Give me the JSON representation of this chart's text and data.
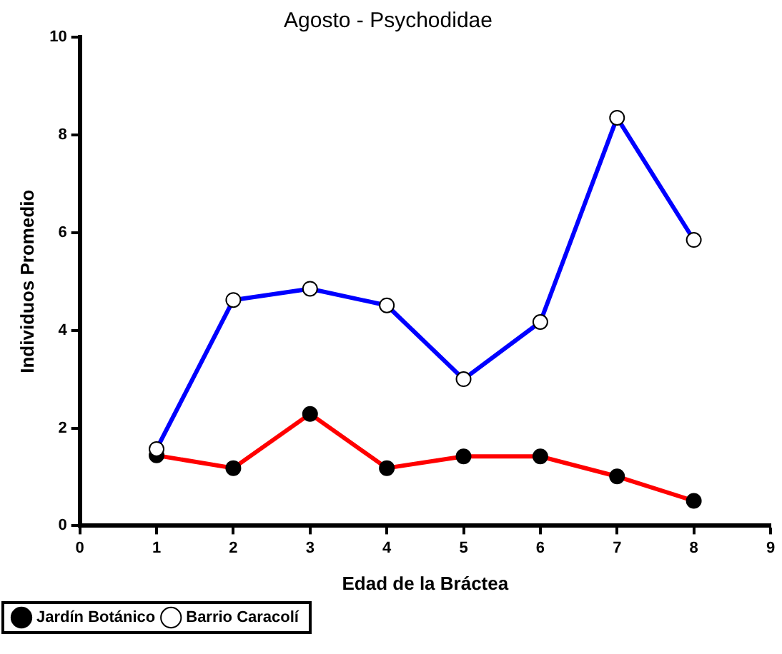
{
  "chart_data": {
    "type": "line",
    "title": "Agosto - Psychodidae",
    "xlabel": "Edad de la Bráctea",
    "ylabel": "Individuos Promedio",
    "x": [
      1,
      2,
      3,
      4,
      5,
      6,
      7,
      8
    ],
    "series": [
      {
        "name": "Jardín Botánico",
        "color": "#ff0000",
        "values": [
          1.44,
          1.18,
          2.29,
          1.18,
          1.42,
          1.42,
          1.01,
          0.51
        ]
      },
      {
        "name": "Barrio Caracolí",
        "color": "#0000ff",
        "values": [
          1.57,
          4.62,
          4.85,
          4.51,
          3.0,
          4.17,
          8.35,
          5.85
        ]
      }
    ],
    "xlim": [
      0,
      9
    ],
    "xticks": [
      0,
      1,
      2,
      3,
      4,
      5,
      6,
      7,
      8,
      9
    ],
    "ylim": [
      0,
      10
    ],
    "yticks": [
      0,
      2,
      4,
      6,
      8,
      10
    ],
    "grid": false,
    "legend": "bottom left",
    "marker": "circle",
    "line_style": "solid"
  }
}
